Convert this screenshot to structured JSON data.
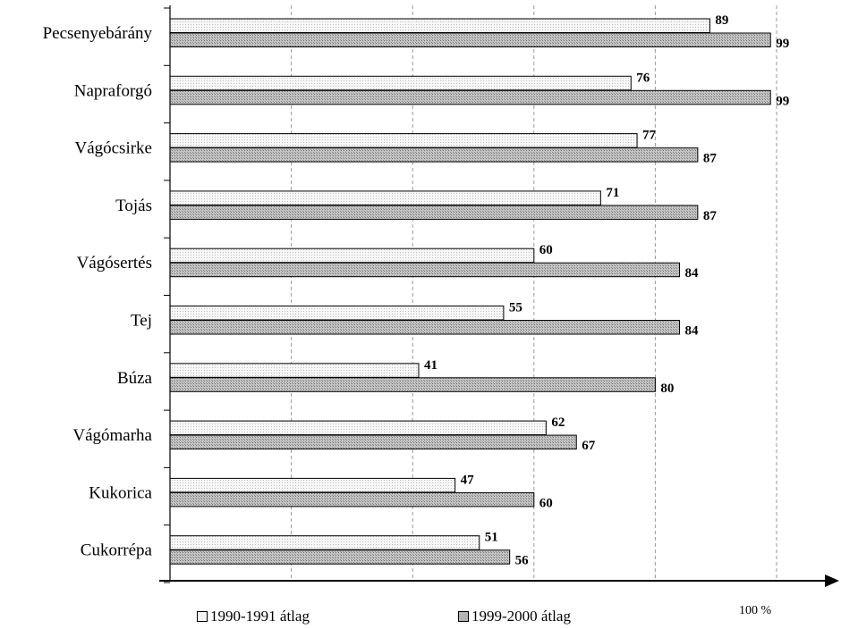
{
  "chart_data": {
    "type": "bar",
    "orientation": "horizontal",
    "categories": [
      "Pecsenyebárány",
      "Napraforgó",
      "Vágócsirke",
      "Tojás",
      "Vágósertés",
      "Tej",
      "Búza",
      "Vágómarha",
      "Kukorica",
      "Cukorrépa"
    ],
    "series": [
      {
        "name": "1990-1991 átlag",
        "values": [
          89,
          76,
          77,
          71,
          60,
          55,
          41,
          62,
          47,
          51
        ],
        "pattern": "light-dotted"
      },
      {
        "name": "1999-2000 átlag",
        "values": [
          99,
          99,
          87,
          87,
          84,
          84,
          80,
          67,
          60,
          56
        ],
        "pattern": "dark-dotted"
      }
    ],
    "xlim": [
      0,
      100
    ],
    "axis_unit_label": "100 %",
    "gridlines": "vertical dashed",
    "legend_position": "bottom",
    "colors": {
      "series1_fill": "#f2f2f2",
      "series2_fill": "#b4b4b4",
      "outline": "#000000"
    }
  }
}
